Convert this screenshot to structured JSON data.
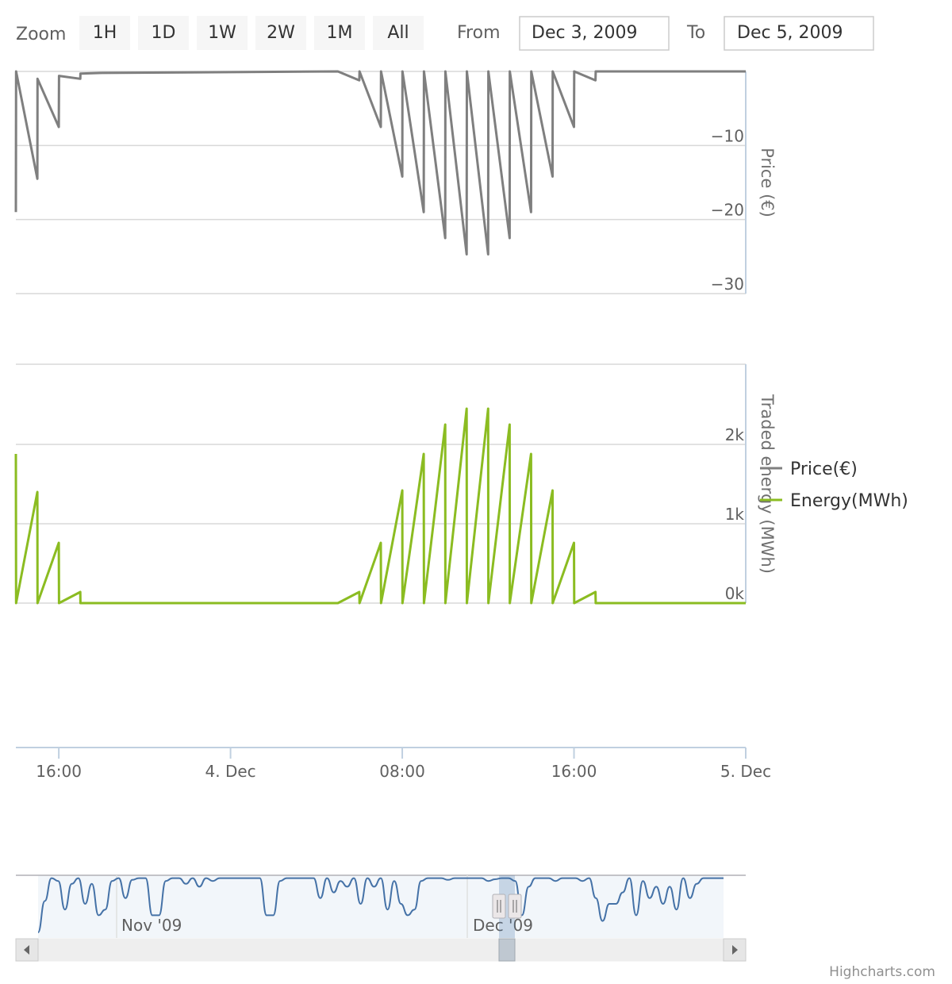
{
  "range_selector": {
    "zoom_label": "Zoom",
    "buttons": [
      "1H",
      "1D",
      "1W",
      "2W",
      "1M",
      "All"
    ],
    "from_label": "From",
    "from_value": "Dec 3, 2009",
    "to_label": "To",
    "to_value": "Dec 5, 2009"
  },
  "colors": {
    "price": "#7f7f7f",
    "energy": "#8bbc21",
    "navigator": "#4572a7",
    "grid": "#d8d8d8",
    "axis": "#c0d0e0"
  },
  "chart_data": {
    "type": "line",
    "x_axis": {
      "ticks": [
        "16:00",
        "4. Dec",
        "08:00",
        "16:00",
        "5. Dec"
      ],
      "range_hours": [
        14,
        48
      ]
    },
    "series": [
      {
        "name": "Price(€)",
        "axis_title": "Price (€)",
        "yticks": [
          -10,
          -20,
          -30
        ],
        "ylim": [
          -30,
          0
        ],
        "points": [
          [
            14.0,
            -19
          ],
          [
            14.01,
            0
          ],
          [
            15.0,
            -14.5
          ],
          [
            15.01,
            -1
          ],
          [
            16.0,
            -7.5
          ],
          [
            16.01,
            -0.6
          ],
          [
            17.0,
            -1
          ],
          [
            17.01,
            -0.3
          ],
          [
            18.0,
            -0.2
          ],
          [
            29.0,
            0
          ],
          [
            30.0,
            -1.2
          ],
          [
            30.01,
            0
          ],
          [
            31.0,
            -7.5
          ],
          [
            31.01,
            0
          ],
          [
            32.0,
            -14.2
          ],
          [
            32.01,
            0
          ],
          [
            33.0,
            -19
          ],
          [
            33.01,
            0
          ],
          [
            34.0,
            -22.5
          ],
          [
            34.01,
            0
          ],
          [
            35.0,
            -24.7
          ],
          [
            35.01,
            0
          ],
          [
            36.0,
            -24.7
          ],
          [
            36.01,
            0
          ],
          [
            37.0,
            -22.5
          ],
          [
            37.01,
            0
          ],
          [
            38.0,
            -19
          ],
          [
            38.01,
            0
          ],
          [
            39.0,
            -14.2
          ],
          [
            39.01,
            0
          ],
          [
            40.0,
            -7.5
          ],
          [
            40.01,
            0
          ],
          [
            41.0,
            -1.2
          ],
          [
            41.01,
            0
          ],
          [
            48.0,
            0
          ]
        ]
      },
      {
        "name": "Energy(MWh)",
        "axis_title": "Traded energy (MWh)",
        "yticks": [
          "0k",
          "1k",
          "2k"
        ],
        "ylim": [
          0,
          3000
        ],
        "points": [
          [
            14.0,
            1880
          ],
          [
            14.01,
            0
          ],
          [
            15.0,
            1400
          ],
          [
            15.01,
            0
          ],
          [
            16.0,
            760
          ],
          [
            16.01,
            0
          ],
          [
            17.0,
            140
          ],
          [
            17.01,
            0
          ],
          [
            18.0,
            0
          ],
          [
            29.0,
            0
          ],
          [
            30.0,
            140
          ],
          [
            30.01,
            0
          ],
          [
            31.0,
            760
          ],
          [
            31.01,
            0
          ],
          [
            32.0,
            1420
          ],
          [
            32.01,
            0
          ],
          [
            33.0,
            1880
          ],
          [
            33.01,
            0
          ],
          [
            34.0,
            2250
          ],
          [
            34.01,
            0
          ],
          [
            35.0,
            2450
          ],
          [
            35.01,
            0
          ],
          [
            36.0,
            2450
          ],
          [
            36.01,
            0
          ],
          [
            37.0,
            2250
          ],
          [
            37.01,
            0
          ],
          [
            38.0,
            1880
          ],
          [
            38.01,
            0
          ],
          [
            39.0,
            1420
          ],
          [
            39.01,
            0
          ],
          [
            40.0,
            760
          ],
          [
            40.01,
            0
          ],
          [
            41.0,
            140
          ],
          [
            41.01,
            0
          ],
          [
            48.0,
            0
          ]
        ]
      }
    ],
    "legend": {
      "position": "right",
      "entries": [
        "Price(€)",
        "Energy(MWh)"
      ]
    },
    "grid": true
  },
  "navigator": {
    "labels": [
      "Nov '09",
      "Dec '09"
    ],
    "values": [
      0.0,
      0.55,
      0.95,
      0.9,
      0.4,
      0.85,
      0.95,
      0.5,
      0.85,
      0.3,
      0.4,
      0.9,
      0.95,
      0.6,
      0.92,
      0.95,
      0.95,
      0.3,
      0.3,
      0.9,
      0.95,
      0.95,
      0.85,
      0.95,
      0.8,
      0.95,
      0.9,
      0.95,
      0.95,
      0.95,
      0.95,
      0.95,
      0.95,
      0.95,
      0.3,
      0.3,
      0.9,
      0.95,
      0.95,
      0.95,
      0.95,
      0.95,
      0.6,
      0.95,
      0.7,
      0.9,
      0.8,
      0.95,
      0.5,
      0.95,
      0.8,
      0.95,
      0.4,
      0.9,
      0.5,
      0.3,
      0.4,
      0.9,
      0.95,
      0.95,
      0.95,
      0.92,
      0.95,
      0.95,
      0.95,
      0.95,
      0.95,
      0.9,
      0.93,
      0.95,
      0.95,
      0.9,
      0.3,
      0.8,
      0.95,
      0.95,
      0.95,
      0.9,
      0.95,
      0.95,
      0.95,
      0.9,
      0.95,
      0.6,
      0.2,
      0.5,
      0.5,
      0.7,
      0.95,
      0.3,
      0.9,
      0.6,
      0.8,
      0.5,
      0.8,
      0.4,
      0.95,
      0.6,
      0.85,
      0.95,
      0.95,
      0.95,
      0.95
    ]
  },
  "credits": "Highcharts.com"
}
